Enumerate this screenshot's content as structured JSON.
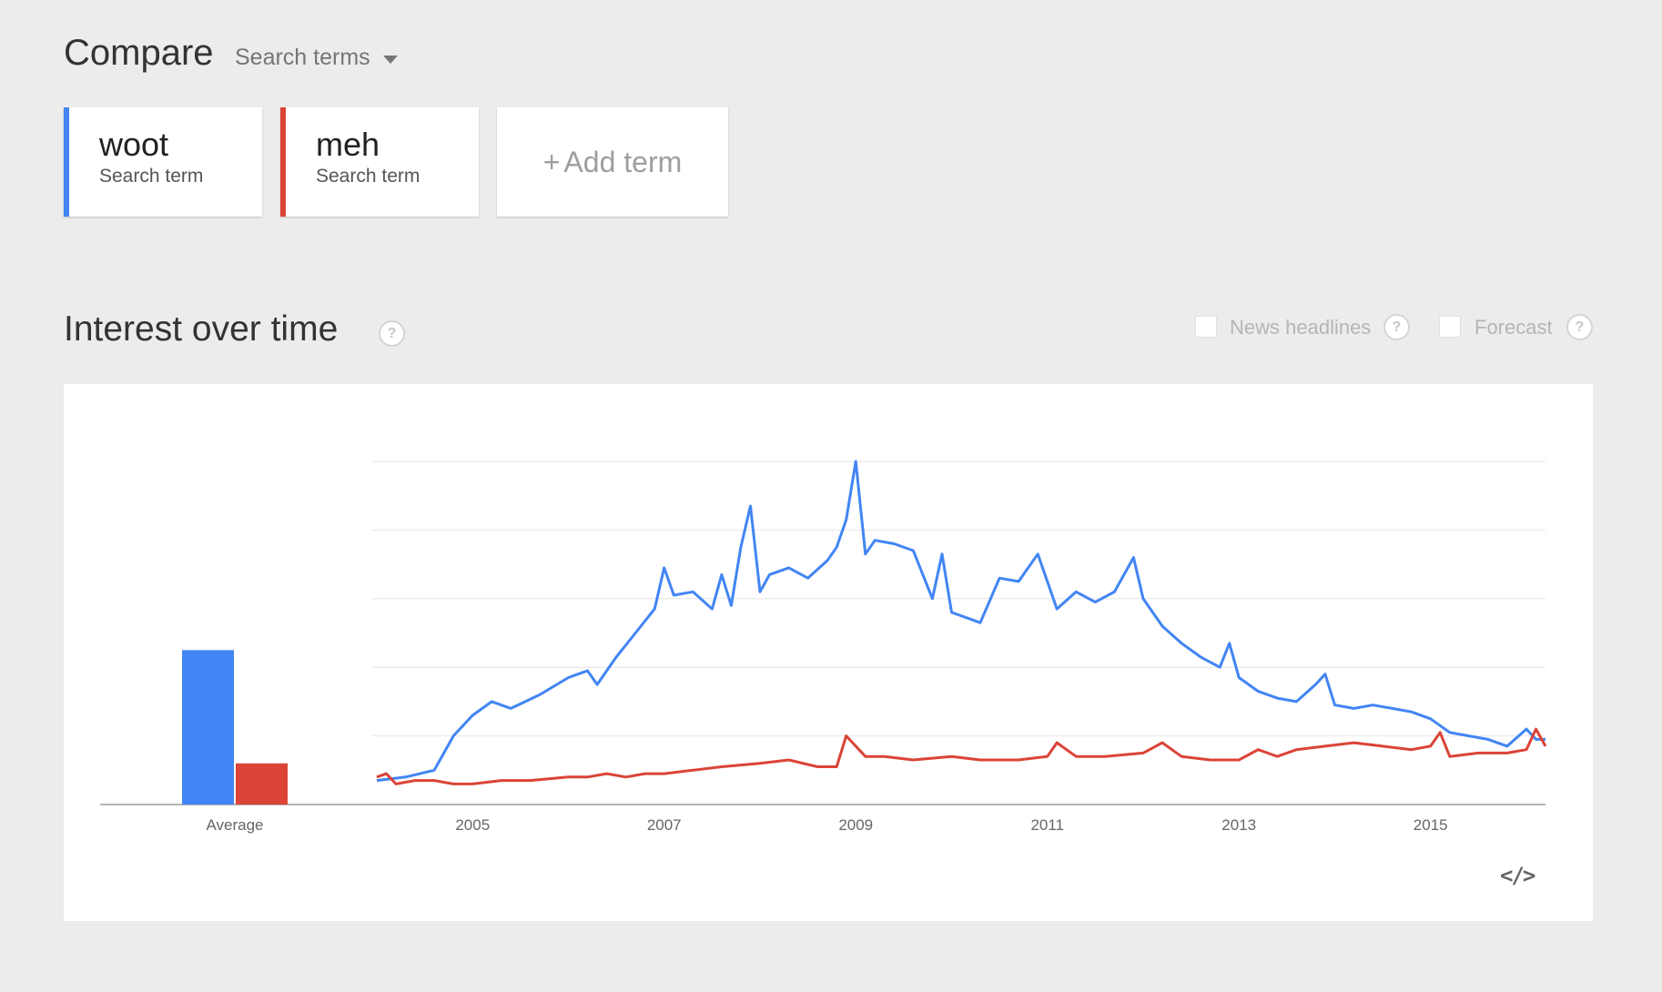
{
  "compare": {
    "title": "Compare",
    "dropdown_label": "Search terms"
  },
  "terms": [
    {
      "name": "woot",
      "sub": "Search term",
      "color": "#4285f4"
    },
    {
      "name": "meh",
      "sub": "Search term",
      "color": "#db4437"
    }
  ],
  "add_term": {
    "plus": "+",
    "label": "Add term"
  },
  "section": {
    "title": "Interest over time",
    "help": "?",
    "options": [
      {
        "label": "News headlines",
        "help": "?"
      },
      {
        "label": "Forecast",
        "help": "?"
      }
    ]
  },
  "icons": {
    "embed": "</>"
  },
  "chart_data": {
    "type": "line",
    "title": "",
    "xlabel": "",
    "ylabel": "",
    "ylim": [
      0,
      100
    ],
    "grid": true,
    "y_ticks_labeled": false,
    "x_tick_labels": [
      "2005",
      "2007",
      "2009",
      "2011",
      "2013",
      "2015"
    ],
    "x_start": 2004.0,
    "x_end": 2016.2,
    "average": {
      "label": "Average",
      "values": [
        45,
        12
      ]
    },
    "series": [
      {
        "name": "woot",
        "color": "#4285f4",
        "points": [
          [
            2004.0,
            7
          ],
          [
            2004.3,
            8
          ],
          [
            2004.6,
            10
          ],
          [
            2004.8,
            20
          ],
          [
            2005.0,
            26
          ],
          [
            2005.2,
            30
          ],
          [
            2005.4,
            28
          ],
          [
            2005.7,
            32
          ],
          [
            2006.0,
            37
          ],
          [
            2006.2,
            39
          ],
          [
            2006.3,
            35
          ],
          [
            2006.5,
            43
          ],
          [
            2006.7,
            50
          ],
          [
            2006.9,
            57
          ],
          [
            2007.0,
            69
          ],
          [
            2007.1,
            61
          ],
          [
            2007.3,
            62
          ],
          [
            2007.5,
            57
          ],
          [
            2007.6,
            67
          ],
          [
            2007.7,
            58
          ],
          [
            2007.8,
            75
          ],
          [
            2007.9,
            87
          ],
          [
            2008.0,
            62
          ],
          [
            2008.1,
            67
          ],
          [
            2008.3,
            69
          ],
          [
            2008.5,
            66
          ],
          [
            2008.7,
            71
          ],
          [
            2008.8,
            75
          ],
          [
            2008.9,
            83
          ],
          [
            2009.0,
            100
          ],
          [
            2009.1,
            73
          ],
          [
            2009.2,
            77
          ],
          [
            2009.4,
            76
          ],
          [
            2009.6,
            74
          ],
          [
            2009.8,
            60
          ],
          [
            2009.9,
            73
          ],
          [
            2010.0,
            56
          ],
          [
            2010.3,
            53
          ],
          [
            2010.5,
            66
          ],
          [
            2010.7,
            65
          ],
          [
            2010.9,
            73
          ],
          [
            2011.1,
            57
          ],
          [
            2011.3,
            62
          ],
          [
            2011.5,
            59
          ],
          [
            2011.7,
            62
          ],
          [
            2011.9,
            72
          ],
          [
            2012.0,
            60
          ],
          [
            2012.2,
            52
          ],
          [
            2012.4,
            47
          ],
          [
            2012.6,
            43
          ],
          [
            2012.8,
            40
          ],
          [
            2012.9,
            47
          ],
          [
            2013.0,
            37
          ],
          [
            2013.2,
            33
          ],
          [
            2013.4,
            31
          ],
          [
            2013.6,
            30
          ],
          [
            2013.8,
            35
          ],
          [
            2013.9,
            38
          ],
          [
            2014.0,
            29
          ],
          [
            2014.2,
            28
          ],
          [
            2014.4,
            29
          ],
          [
            2014.6,
            28
          ],
          [
            2014.8,
            27
          ],
          [
            2015.0,
            25
          ],
          [
            2015.2,
            21
          ],
          [
            2015.4,
            20
          ],
          [
            2015.6,
            19
          ],
          [
            2015.8,
            17
          ],
          [
            2016.0,
            22
          ],
          [
            2016.1,
            19
          ],
          [
            2016.2,
            19
          ]
        ]
      },
      {
        "name": "meh",
        "color": "#db4437",
        "points": [
          [
            2004.0,
            8
          ],
          [
            2004.1,
            9
          ],
          [
            2004.2,
            6
          ],
          [
            2004.4,
            7
          ],
          [
            2004.6,
            7
          ],
          [
            2004.8,
            6
          ],
          [
            2005.0,
            6
          ],
          [
            2005.3,
            7
          ],
          [
            2005.6,
            7
          ],
          [
            2006.0,
            8
          ],
          [
            2006.2,
            8
          ],
          [
            2006.4,
            9
          ],
          [
            2006.6,
            8
          ],
          [
            2006.8,
            9
          ],
          [
            2007.0,
            9
          ],
          [
            2007.3,
            10
          ],
          [
            2007.6,
            11
          ],
          [
            2008.0,
            12
          ],
          [
            2008.3,
            13
          ],
          [
            2008.6,
            11
          ],
          [
            2008.8,
            11
          ],
          [
            2008.9,
            20
          ],
          [
            2009.1,
            14
          ],
          [
            2009.3,
            14
          ],
          [
            2009.6,
            13
          ],
          [
            2010.0,
            14
          ],
          [
            2010.3,
            13
          ],
          [
            2010.7,
            13
          ],
          [
            2011.0,
            14
          ],
          [
            2011.1,
            18
          ],
          [
            2011.3,
            14
          ],
          [
            2011.6,
            14
          ],
          [
            2012.0,
            15
          ],
          [
            2012.2,
            18
          ],
          [
            2012.4,
            14
          ],
          [
            2012.7,
            13
          ],
          [
            2013.0,
            13
          ],
          [
            2013.2,
            16
          ],
          [
            2013.4,
            14
          ],
          [
            2013.6,
            16
          ],
          [
            2013.9,
            17
          ],
          [
            2014.2,
            18
          ],
          [
            2014.5,
            17
          ],
          [
            2014.8,
            16
          ],
          [
            2015.0,
            17
          ],
          [
            2015.1,
            21
          ],
          [
            2015.2,
            14
          ],
          [
            2015.5,
            15
          ],
          [
            2015.8,
            15
          ],
          [
            2016.0,
            16
          ],
          [
            2016.1,
            22
          ],
          [
            2016.2,
            17
          ]
        ]
      }
    ]
  }
}
